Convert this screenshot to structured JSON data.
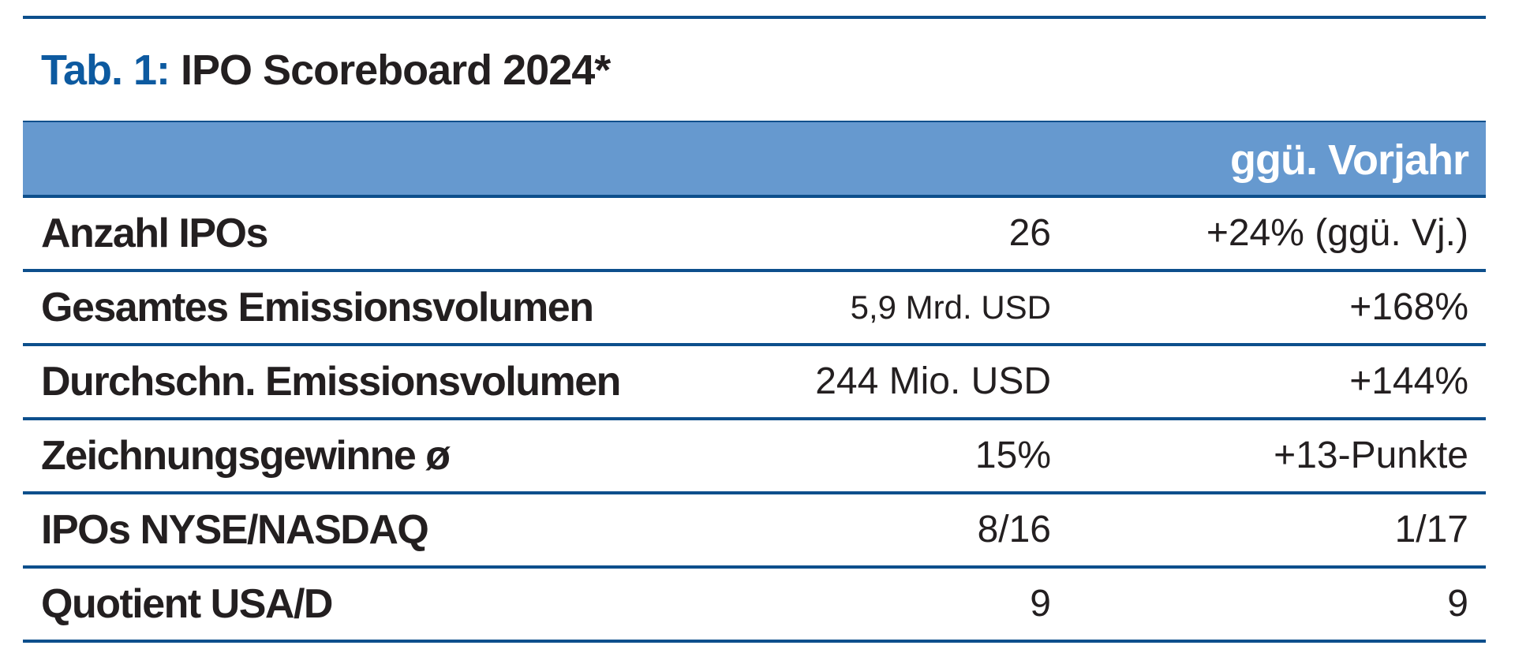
{
  "header": {
    "label": "Tab. 1:",
    "title": "IPO Scoreboard 2024*"
  },
  "table": {
    "column_header": "ggü. Vorjahr",
    "rows": [
      [
        "Anzahl IPOs",
        "26",
        "+24% (ggü. Vj.)"
      ],
      [
        "Gesamtes Emissionsvolumen",
        "5,9 Mrd. USD",
        "+168%"
      ],
      [
        "Durchschn. Emissionsvolumen",
        "244 Mio. USD",
        "+144%"
      ],
      [
        "Zeichnungsgewinne ø",
        "15%",
        "+13-Punkte"
      ],
      [
        "IPOs NYSE/NASDAQ",
        "8/16",
        "1/17"
      ],
      [
        "Quotient USA/D",
        "9",
        "9"
      ]
    ]
  }
}
